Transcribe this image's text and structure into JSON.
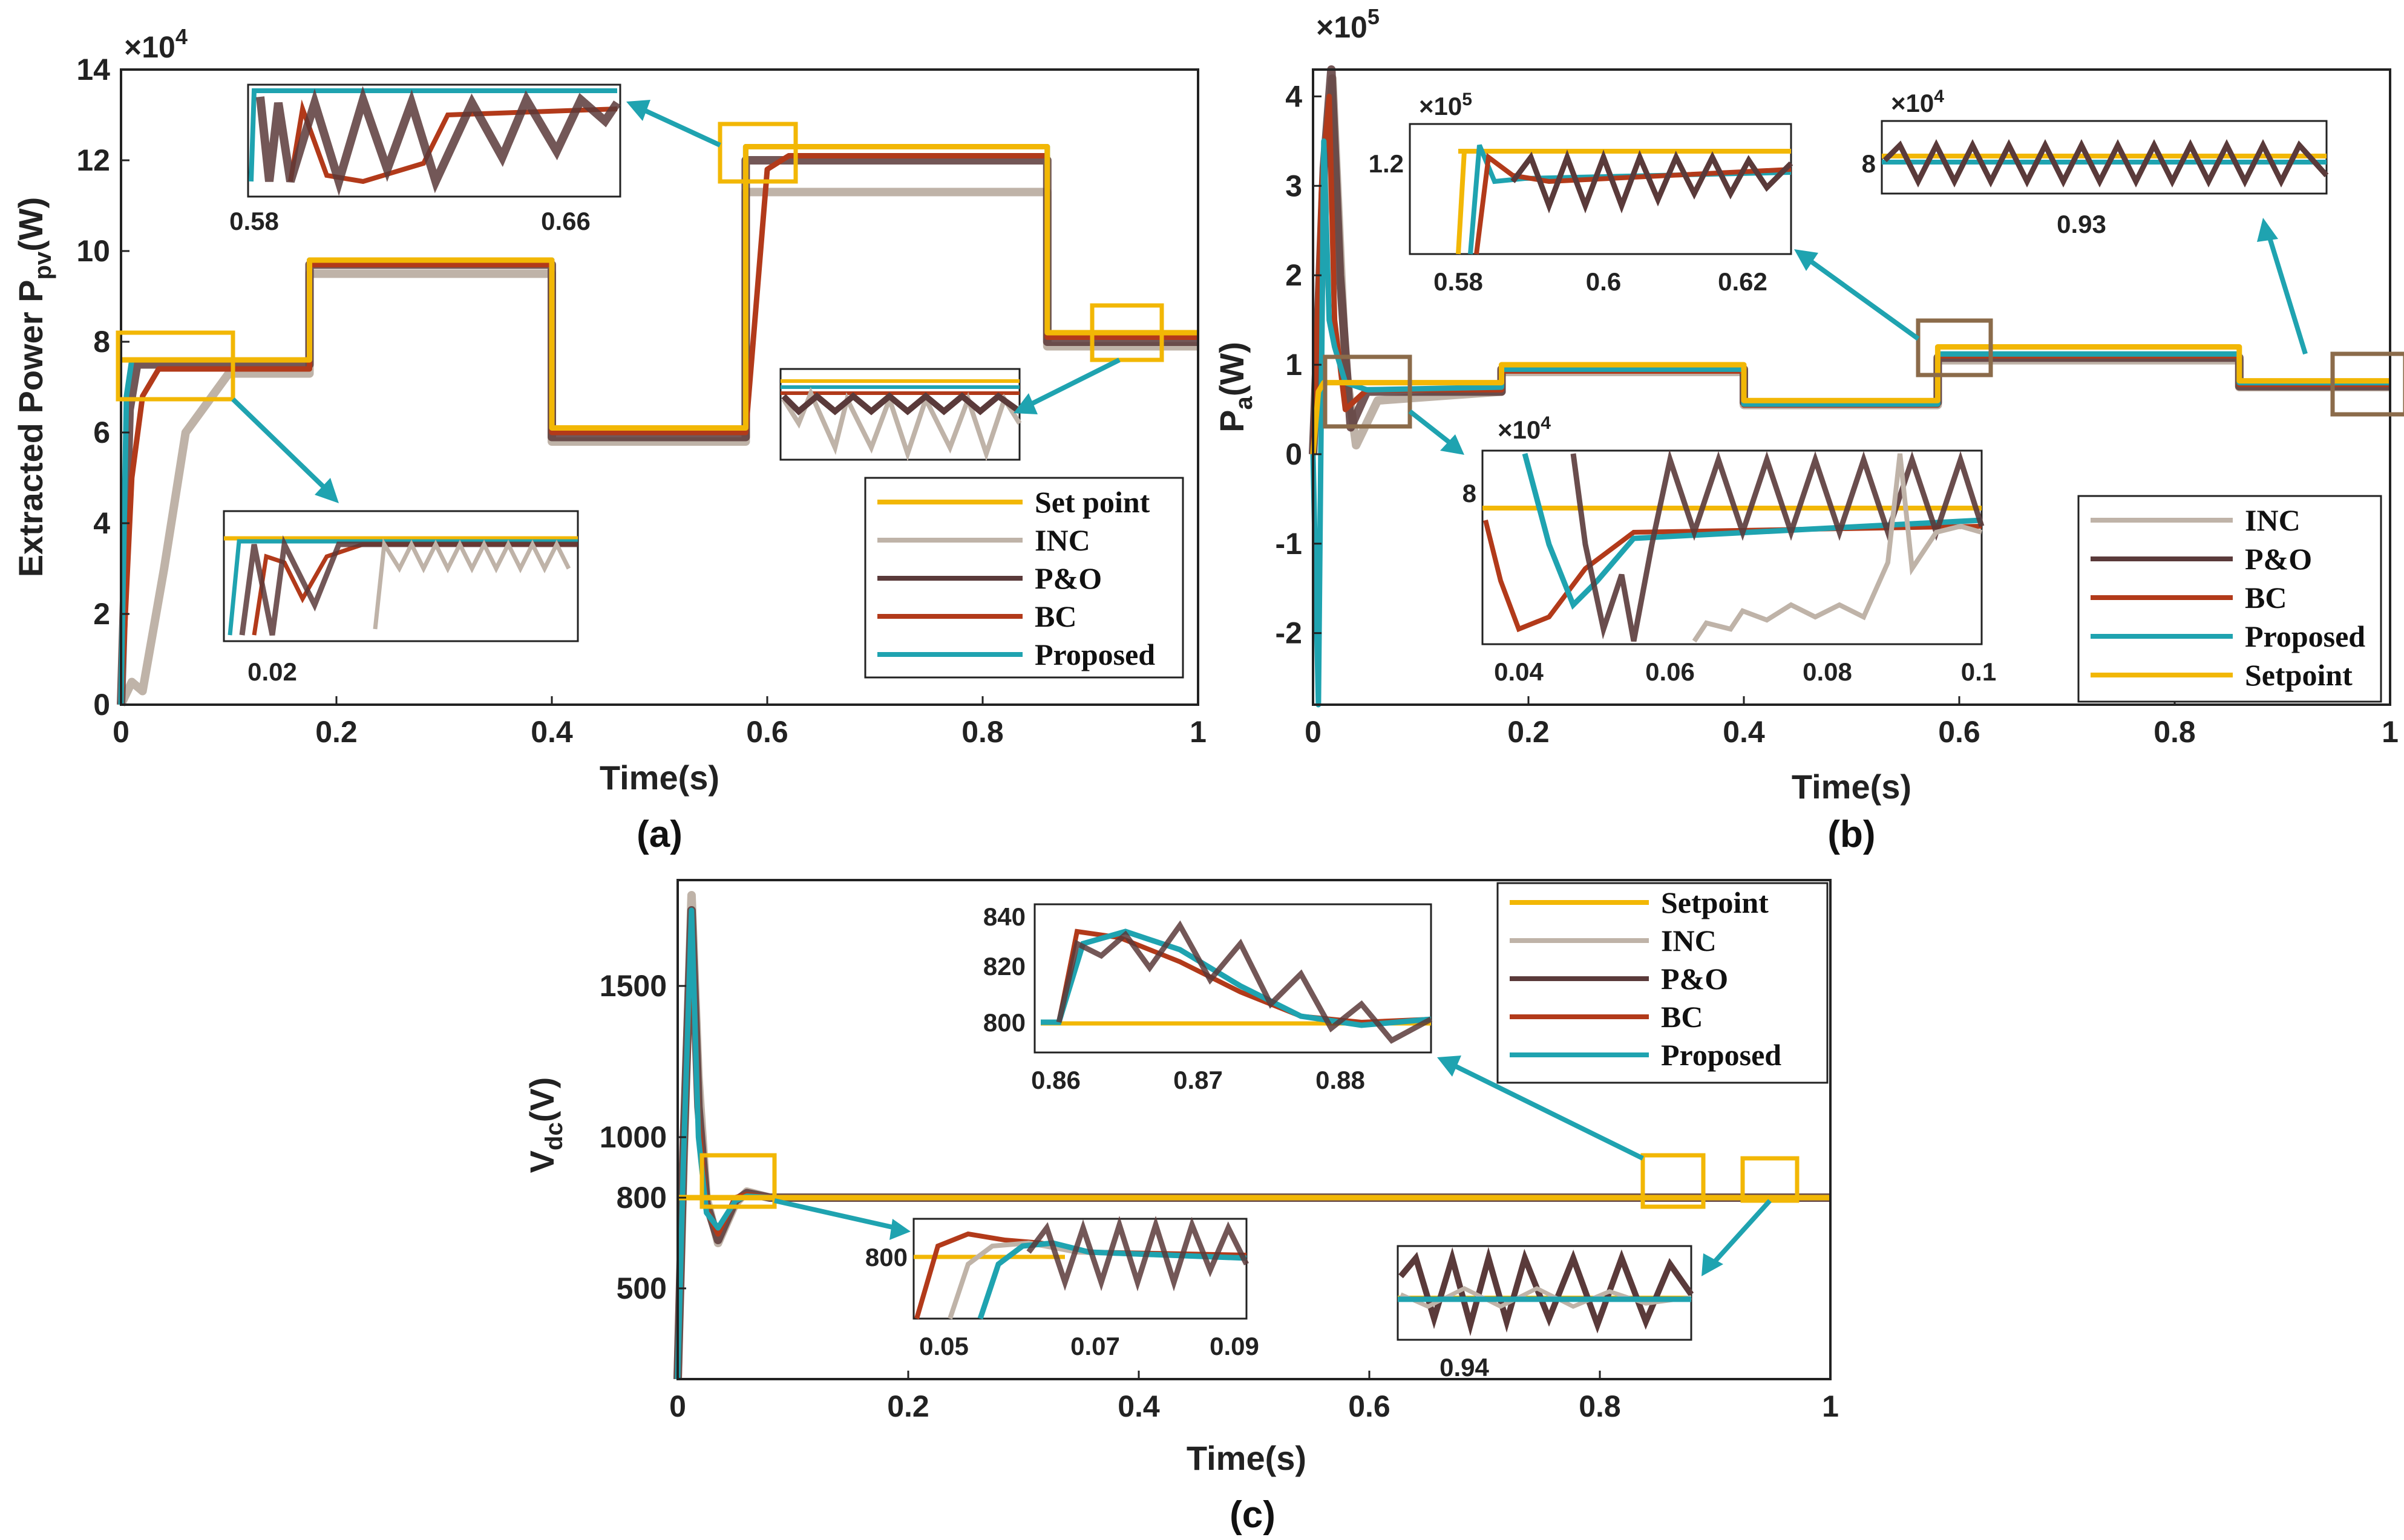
{
  "colors": {
    "setpoint": "#F2B705",
    "inc": "#BFB3A8",
    "po": "#5A3A3A",
    "bc": "#B23A1A",
    "proposed": "#1FA3B0",
    "arrow": "#1FA3B0",
    "zoom_box_yellow": "#F2B705",
    "zoom_box_brown": "#8B6B4A"
  },
  "chart_data": [
    {
      "id": "a",
      "type": "line",
      "panel_label": "(a)",
      "xlabel": "Time(s)",
      "ylabel": "Extracted Power P",
      "ylabel_sub": "pv",
      "ylabel_unit": "(W)",
      "scale_label": "×10",
      "scale_exp": "4",
      "xlim": [
        0,
        1
      ],
      "ylim": [
        0,
        14
      ],
      "xticks": [
        "0",
        "0.2",
        "0.4",
        "0.6",
        "0.8",
        "1"
      ],
      "yticks": [
        "0",
        "2",
        "4",
        "6",
        "8",
        "10",
        "12",
        "14"
      ],
      "legend": [
        "Set point",
        "INC",
        "P&O",
        "BC",
        "Proposed"
      ],
      "series": [
        {
          "name": "Set point",
          "x": [
            0,
            0.175,
            0.175,
            0.4,
            0.4,
            0.58,
            0.58,
            0.86,
            0.86,
            1
          ],
          "y": [
            7.6,
            7.6,
            9.8,
            9.8,
            6.1,
            6.1,
            12.3,
            12.3,
            8.2,
            8.2
          ]
        },
        {
          "name": "Proposed",
          "x": [
            0,
            0.005,
            0.01,
            0.175,
            0.175,
            0.4,
            0.4,
            0.58,
            0.58,
            0.86,
            0.86,
            1
          ],
          "y": [
            0,
            6.8,
            7.6,
            7.6,
            9.8,
            9.8,
            6.1,
            6.1,
            12.3,
            12.3,
            8.2,
            8.2
          ]
        },
        {
          "name": "BC",
          "x": [
            0,
            0.01,
            0.02,
            0.035,
            0.175,
            0.175,
            0.4,
            0.4,
            0.58,
            0.6,
            0.62,
            0.86,
            0.86,
            1
          ],
          "y": [
            0,
            5,
            6.8,
            7.4,
            7.4,
            9.7,
            9.7,
            6.0,
            6.0,
            11.8,
            12.1,
            12.1,
            8.1,
            8.1
          ]
        },
        {
          "name": "P&O",
          "x": [
            0,
            0.008,
            0.015,
            0.175,
            0.175,
            0.4,
            0.4,
            0.58,
            0.58,
            0.86,
            0.86,
            1
          ],
          "y": [
            0,
            6.5,
            7.5,
            7.5,
            9.7,
            9.7,
            5.9,
            5.9,
            12.0,
            12.0,
            8.0,
            8.0
          ]
        },
        {
          "name": "INC",
          "x": [
            0,
            0.01,
            0.02,
            0.04,
            0.06,
            0.1,
            0.175,
            0.175,
            0.4,
            0.4,
            0.58,
            0.58,
            0.86,
            0.86,
            1
          ],
          "y": [
            0,
            0.5,
            0.3,
            3,
            6,
            7.3,
            7.3,
            9.5,
            9.5,
            5.8,
            5.8,
            11.3,
            11.3,
            7.9,
            7.9
          ]
        }
      ],
      "insets": [
        {
          "tick_labels": [
            "0.58",
            "0.66"
          ]
        },
        {
          "tick_labels": [
            "0.02"
          ]
        },
        {
          "tick_labels": []
        }
      ]
    },
    {
      "id": "b",
      "type": "line",
      "panel_label": "(b)",
      "xlabel": "Time(s)",
      "ylabel": "P",
      "ylabel_sub": "a",
      "ylabel_unit": "(W)",
      "scale_label": "×10",
      "scale_exp": "5",
      "xlim": [
        0,
        1
      ],
      "ylim": [
        -2.8,
        4.3
      ],
      "xticks": [
        "0",
        "0.2",
        "0.4",
        "0.6",
        "0.8",
        "1"
      ],
      "yticks": [
        "-2",
        "-1",
        "0",
        "1",
        "2",
        "3",
        "4"
      ],
      "legend": [
        "INC",
        "P&O",
        "BC",
        "Proposed",
        "Setpoint"
      ],
      "series": [
        {
          "name": "Setpoint",
          "x": [
            0,
            0.005,
            0.01,
            0.175,
            0.175,
            0.4,
            0.4,
            0.58,
            0.58,
            0.86,
            0.86,
            1
          ],
          "y": [
            0,
            0.7,
            0.8,
            0.8,
            1.0,
            1.0,
            0.6,
            0.6,
            1.2,
            1.2,
            0.82,
            0.82
          ]
        },
        {
          "name": "Proposed",
          "x": [
            0,
            0.005,
            0.01,
            0.015,
            0.02,
            0.03,
            0.05,
            0.175,
            0.175,
            0.4,
            0.4,
            0.58,
            0.58,
            0.86,
            0.86,
            1
          ],
          "y": [
            0,
            -2.8,
            3.5,
            1.5,
            1.2,
            0.8,
            0.72,
            0.75,
            0.95,
            0.95,
            0.56,
            0.56,
            1.12,
            1.12,
            0.8,
            0.8
          ]
        },
        {
          "name": "BC",
          "x": [
            0,
            0.008,
            0.015,
            0.02,
            0.03,
            0.05,
            0.175,
            0.175,
            0.4,
            0.4,
            0.58,
            0.58,
            0.86,
            0.86,
            1
          ],
          "y": [
            0,
            3.0,
            4.0,
            1.5,
            0.5,
            0.72,
            0.72,
            0.93,
            0.93,
            0.55,
            0.55,
            1.1,
            1.1,
            0.78,
            0.78
          ]
        },
        {
          "name": "P&O",
          "x": [
            0,
            0.01,
            0.017,
            0.025,
            0.035,
            0.05,
            0.175,
            0.175,
            0.4,
            0.4,
            0.58,
            0.58,
            0.86,
            0.86,
            1
          ],
          "y": [
            0,
            3.2,
            4.3,
            2.0,
            0.3,
            0.7,
            0.7,
            0.95,
            0.95,
            0.58,
            0.58,
            1.08,
            1.08,
            0.76,
            0.76
          ]
        },
        {
          "name": "INC",
          "x": [
            0,
            0.01,
            0.018,
            0.03,
            0.04,
            0.06,
            0.175,
            0.175,
            0.4,
            0.4,
            0.58,
            0.58,
            0.86,
            0.86,
            1
          ],
          "y": [
            0,
            2.5,
            4.2,
            1.0,
            0.1,
            0.6,
            0.7,
            0.92,
            0.92,
            0.55,
            0.55,
            1.05,
            1.05,
            0.75,
            0.75
          ]
        }
      ],
      "insets": [
        {
          "scale_label": "×10",
          "scale_exp": "5",
          "ytick": "1.2",
          "tick_labels": [
            "0.58",
            "0.6",
            "0.62"
          ]
        },
        {
          "scale_label": "×10",
          "scale_exp": "4",
          "ytick": "8",
          "tick_labels": [
            "0.93"
          ]
        },
        {
          "scale_label": "×10",
          "scale_exp": "4",
          "ytick": "8",
          "tick_labels": [
            "0.04",
            "0.06",
            "0.08",
            "0.1"
          ]
        }
      ]
    },
    {
      "id": "c",
      "type": "line",
      "panel_label": "(c)",
      "xlabel": "Time(s)",
      "ylabel": "V",
      "ylabel_sub": "dc",
      "ylabel_unit": "(V)",
      "xlim": [
        0,
        1
      ],
      "ylim": [
        200,
        1850
      ],
      "xticks": [
        "0",
        "0.2",
        "0.4",
        "0.6",
        "0.8",
        "1"
      ],
      "yticks": [
        "500",
        "800",
        "1000",
        "1500"
      ],
      "ytick_values": [
        500,
        800,
        1000,
        1500
      ],
      "legend": [
        "Setpoint",
        "INC",
        "P&O",
        "BC",
        "Proposed"
      ],
      "series": [
        {
          "name": "Setpoint",
          "x": [
            0,
            1
          ],
          "y": [
            800,
            800
          ]
        },
        {
          "name": "INC",
          "x": [
            0,
            0.005,
            0.012,
            0.018,
            0.025,
            0.035,
            0.05,
            0.06,
            0.08,
            1
          ],
          "y": [
            200,
            900,
            1800,
            1200,
            800,
            650,
            780,
            820,
            800,
            800
          ]
        },
        {
          "name": "P&O",
          "x": [
            0,
            0.005,
            0.012,
            0.018,
            0.025,
            0.035,
            0.05,
            0.06,
            0.08,
            1
          ],
          "y": [
            200,
            950,
            1750,
            1100,
            780,
            660,
            790,
            815,
            800,
            800
          ]
        },
        {
          "name": "BC",
          "x": [
            0,
            0.005,
            0.012,
            0.018,
            0.025,
            0.035,
            0.05,
            0.06,
            0.08,
            1
          ],
          "y": [
            200,
            900,
            1700,
            1050,
            760,
            680,
            800,
            810,
            800,
            800
          ]
        },
        {
          "name": "Proposed",
          "x": [
            0,
            0.005,
            0.012,
            0.018,
            0.025,
            0.035,
            0.05,
            0.06,
            0.08,
            1
          ],
          "y": [
            200,
            920,
            1750,
            1000,
            750,
            700,
            790,
            805,
            800,
            800
          ]
        }
      ],
      "insets": [
        {
          "yticks": [
            "800",
            "820",
            "840"
          ],
          "tick_labels": [
            "0.86",
            "0.87",
            "0.88"
          ]
        },
        {
          "ytick": "800",
          "tick_labels": [
            "0.05",
            "0.07",
            "0.09"
          ]
        },
        {
          "tick_labels": [
            "0.94"
          ]
        }
      ]
    }
  ]
}
